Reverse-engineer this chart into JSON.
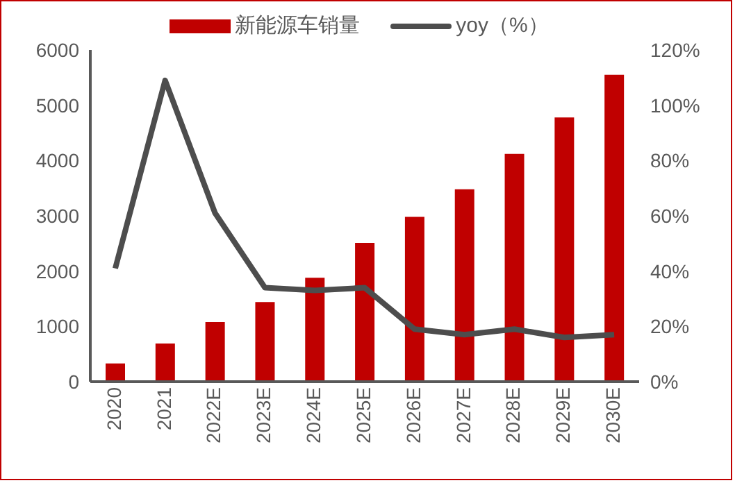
{
  "chart_data": {
    "type": "bar",
    "categories": [
      "2020",
      "2021",
      "2022E",
      "2023E",
      "2024E",
      "2025E",
      "2026E",
      "2027E",
      "2028E",
      "2029E",
      "2030E"
    ],
    "series": [
      {
        "name": "新能源车销量",
        "color": "#c00000",
        "values": [
          330,
          690,
          1080,
          1440,
          1880,
          2510,
          2980,
          3480,
          4120,
          4780,
          5550
        ]
      },
      {
        "name": "yoy（%）",
        "type": "line",
        "axis": "y2",
        "color": "#4d4d4d",
        "values": [
          41,
          109,
          61,
          34,
          33,
          34,
          19,
          17,
          19,
          16,
          17
        ]
      }
    ],
    "ylim": [
      0,
      6000
    ],
    "yticks": [
      0,
      1000,
      2000,
      3000,
      4000,
      5000,
      6000
    ],
    "y2lim": [
      0,
      120
    ],
    "y2ticks": [
      {
        "value": 0,
        "label": "0%"
      },
      {
        "value": 20,
        "label": "20%"
      },
      {
        "value": 40,
        "label": "40%"
      },
      {
        "value": 60,
        "label": "60%"
      },
      {
        "value": 80,
        "label": "80%"
      },
      {
        "value": 100,
        "label": "100%"
      },
      {
        "value": 120,
        "label": "120%"
      }
    ],
    "grid": false,
    "legend": "top",
    "marker": "none"
  }
}
